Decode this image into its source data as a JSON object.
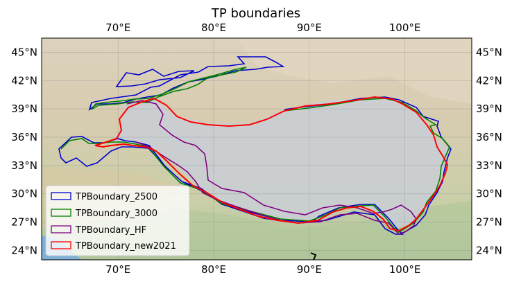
{
  "title": "TP boundaries",
  "map": {
    "lon_range": [
      62,
      107
    ],
    "lat_range": [
      23,
      46.5
    ],
    "gridlines": true,
    "x_ticks": [
      "70°E",
      "80°E",
      "90°E",
      "100°E"
    ],
    "x_tick_values": [
      70,
      80,
      90,
      100
    ],
    "y_ticks": [
      "24°N",
      "27°N",
      "30°N",
      "33°N",
      "36°N",
      "39°N",
      "42°N",
      "45°N"
    ],
    "y_tick_values": [
      24,
      27,
      30,
      33,
      36,
      39,
      42,
      45
    ],
    "tick_labels_on": [
      "top",
      "bottom",
      "left",
      "right"
    ],
    "background": "shaded-relief terrain"
  },
  "legend": {
    "placement": "lower-left",
    "entries": [
      {
        "label": "TPBoundary_2500",
        "color": "#0000cc"
      },
      {
        "label": "TPBoundary_3000",
        "color": "#008000"
      },
      {
        "label": "TPBoundary_HF",
        "color": "#800080"
      },
      {
        "label": "TPBoundary_new2021",
        "color": "#ff0000"
      }
    ]
  },
  "colors": {
    "plateau_fill": "#c9ced6",
    "desert": "#dcd0b4",
    "lowland_green": "#b9c9a3",
    "ocean": "#7fb0d6"
  }
}
